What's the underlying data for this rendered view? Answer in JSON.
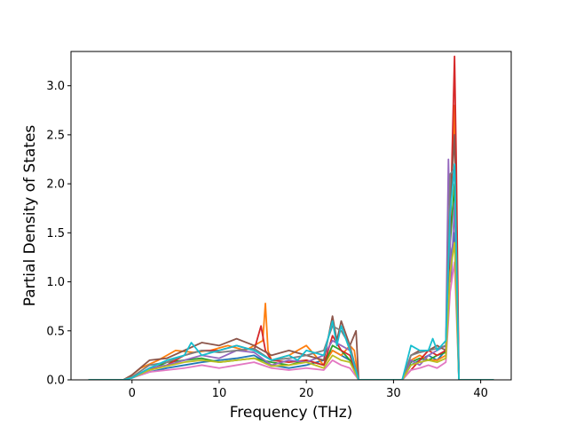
{
  "chart_data": {
    "type": "line",
    "title": "",
    "xlabel": "Frequency (THz)",
    "ylabel": "Partial Density of States",
    "xlim": [
      -7,
      43.5
    ],
    "ylim": [
      0,
      3.35
    ],
    "xticks": [
      0,
      10,
      20,
      30,
      40
    ],
    "xtick_labels": [
      "0",
      "10",
      "20",
      "30",
      "40"
    ],
    "yticks": [
      0.0,
      0.5,
      1.0,
      1.5,
      2.0,
      2.5,
      3.0
    ],
    "ytick_labels": [
      "0.0",
      "0.5",
      "1.0",
      "1.5",
      "2.0",
      "2.5",
      "3.0"
    ],
    "grid": false,
    "legend": "none",
    "series": [
      {
        "color": "#1f77b4",
        "x": [
          -5,
          -1,
          0,
          2,
          4,
          6,
          8,
          10,
          12,
          14,
          16,
          18,
          20,
          22,
          23,
          24,
          25,
          26,
          27,
          31,
          32,
          33,
          34,
          35,
          36,
          36.5,
          37,
          37.5,
          38,
          41.5
        ],
        "y": [
          0,
          0,
          0.02,
          0.08,
          0.12,
          0.15,
          0.18,
          0.2,
          0.22,
          0.25,
          0.15,
          0.12,
          0.15,
          0.2,
          0.3,
          0.25,
          0.2,
          0,
          0,
          0,
          0.15,
          0.2,
          0.25,
          0.2,
          0.3,
          1.2,
          1.5,
          0,
          0,
          0
        ]
      },
      {
        "color": "#ff7f0e",
        "x": [
          -5,
          -1,
          0,
          1,
          3,
          5,
          7,
          9,
          11,
          13,
          15,
          15.3,
          15.6,
          16,
          18,
          20,
          22,
          23,
          24,
          25,
          25.5,
          26,
          27,
          31,
          32,
          33,
          34,
          35,
          36,
          36.5,
          37,
          37.5,
          38,
          41.5
        ],
        "y": [
          0,
          0,
          0.05,
          0.12,
          0.2,
          0.3,
          0.28,
          0.3,
          0.35,
          0.3,
          0.4,
          0.78,
          0.3,
          0.2,
          0.25,
          0.35,
          0.15,
          0.3,
          0.25,
          0.35,
          0.3,
          0,
          0,
          0,
          0.2,
          0.25,
          0.2,
          0.2,
          0.25,
          1.6,
          2.8,
          0,
          0,
          0
        ]
      },
      {
        "color": "#2ca02c",
        "x": [
          -5,
          -1,
          0,
          2,
          4,
          6,
          8,
          10,
          12,
          14,
          16,
          18,
          20,
          22,
          23,
          24,
          25,
          26,
          27,
          31,
          32,
          33,
          34,
          35,
          36,
          36.5,
          37,
          37.5,
          38,
          41.5
        ],
        "y": [
          0,
          0,
          0.03,
          0.1,
          0.18,
          0.2,
          0.22,
          0.18,
          0.2,
          0.22,
          0.18,
          0.15,
          0.2,
          0.15,
          0.35,
          0.3,
          0.2,
          0,
          0,
          0,
          0.18,
          0.22,
          0.2,
          0.25,
          0.28,
          1.4,
          2.0,
          0,
          0,
          0
        ]
      },
      {
        "color": "#d62728",
        "x": [
          -5,
          -1,
          0,
          2,
          4,
          6,
          8,
          10,
          12,
          14,
          14.8,
          15.3,
          16,
          18,
          20,
          22,
          23,
          24,
          25,
          26,
          27,
          31,
          32,
          33,
          34,
          35,
          36,
          36.5,
          37,
          37.2,
          37.5,
          38,
          41.5
        ],
        "y": [
          0,
          0,
          0.03,
          0.1,
          0.15,
          0.25,
          0.3,
          0.3,
          0.35,
          0.3,
          0.55,
          0.3,
          0.2,
          0.18,
          0.2,
          0.15,
          0.45,
          0.3,
          0.25,
          0,
          0,
          0,
          0.1,
          0.2,
          0.3,
          0.25,
          0.3,
          1.5,
          3.3,
          2.2,
          0,
          0,
          0
        ]
      },
      {
        "color": "#9467bd",
        "x": [
          -5,
          -1,
          0,
          2,
          4,
          6,
          8,
          10,
          12,
          14,
          16,
          18,
          20,
          22,
          23,
          24,
          25,
          26,
          27,
          31,
          32,
          33,
          34,
          35,
          36,
          36.3,
          36.6,
          37,
          37.5,
          38,
          41.5
        ],
        "y": [
          0,
          0,
          0.02,
          0.12,
          0.15,
          0.2,
          0.25,
          0.22,
          0.3,
          0.28,
          0.15,
          0.2,
          0.18,
          0.25,
          0.4,
          0.35,
          0.3,
          0,
          0,
          0,
          0.2,
          0.15,
          0.25,
          0.3,
          0.35,
          2.25,
          1.0,
          1.8,
          0,
          0,
          0
        ]
      },
      {
        "color": "#8c564b",
        "x": [
          -5,
          -1,
          0,
          2,
          4,
          6,
          8,
          10,
          12,
          14,
          16,
          18,
          20,
          22,
          23,
          23.5,
          24,
          25,
          25.7,
          26,
          27,
          31,
          32,
          33,
          34,
          35,
          36,
          36.5,
          37,
          37.5,
          38,
          41.5
        ],
        "y": [
          0,
          0,
          0.05,
          0.2,
          0.22,
          0.3,
          0.38,
          0.35,
          0.42,
          0.35,
          0.25,
          0.3,
          0.25,
          0.2,
          0.65,
          0.4,
          0.6,
          0.35,
          0.5,
          0,
          0,
          0,
          0.25,
          0.3,
          0.3,
          0.35,
          0.3,
          1.8,
          2.5,
          0,
          0,
          0
        ]
      },
      {
        "color": "#e377c2",
        "x": [
          -5,
          -1,
          0,
          2,
          4,
          6,
          8,
          10,
          12,
          14,
          16,
          18,
          20,
          22,
          23,
          24,
          25,
          26,
          27,
          31,
          32,
          33,
          34,
          35,
          36,
          36.5,
          37,
          37.5,
          38,
          41.5
        ],
        "y": [
          0,
          0,
          0.02,
          0.08,
          0.1,
          0.12,
          0.15,
          0.12,
          0.15,
          0.18,
          0.12,
          0.1,
          0.12,
          0.1,
          0.2,
          0.15,
          0.12,
          0,
          0,
          0,
          0.1,
          0.12,
          0.15,
          0.12,
          0.18,
          0.9,
          1.2,
          0,
          0,
          0
        ]
      },
      {
        "color": "#7f7f7f",
        "x": [
          -5,
          -1,
          0,
          2,
          4,
          6,
          8,
          10,
          12,
          14,
          16,
          18,
          20,
          22,
          23,
          24,
          25,
          26,
          27,
          31,
          32,
          33,
          34,
          35,
          36,
          36.5,
          37,
          37.5,
          38,
          41.5
        ],
        "y": [
          0,
          0,
          0.03,
          0.15,
          0.18,
          0.25,
          0.3,
          0.28,
          0.3,
          0.32,
          0.2,
          0.22,
          0.25,
          0.3,
          0.55,
          0.5,
          0.35,
          0,
          0,
          0,
          0.25,
          0.28,
          0.3,
          0.32,
          0.35,
          2.1,
          2.15,
          0,
          0,
          0
        ]
      },
      {
        "color": "#bcbd22",
        "x": [
          -5,
          -1,
          0,
          2,
          4,
          6,
          8,
          10,
          12,
          14,
          16,
          18,
          20,
          22,
          23,
          24,
          25,
          26,
          27,
          31,
          32,
          33,
          34,
          35,
          36,
          36.5,
          37,
          37.5,
          38,
          41.5
        ],
        "y": [
          0,
          0,
          0.02,
          0.1,
          0.14,
          0.18,
          0.2,
          0.18,
          0.2,
          0.22,
          0.14,
          0.15,
          0.18,
          0.12,
          0.25,
          0.2,
          0.18,
          0,
          0,
          0,
          0.15,
          0.18,
          0.2,
          0.18,
          0.22,
          1.1,
          1.4,
          0,
          0,
          0
        ]
      },
      {
        "color": "#17becf",
        "x": [
          -5,
          -1,
          0,
          2,
          4,
          6,
          6.8,
          8,
          10,
          12,
          14,
          16,
          18,
          19,
          20,
          22,
          23,
          23.5,
          24,
          25,
          26,
          27,
          31,
          32,
          33,
          34,
          34.5,
          35,
          36,
          36.5,
          37,
          37.5,
          38,
          41.5
        ],
        "y": [
          0,
          0,
          0.02,
          0.12,
          0.2,
          0.25,
          0.38,
          0.25,
          0.3,
          0.35,
          0.3,
          0.2,
          0.25,
          0.2,
          0.3,
          0.25,
          0.6,
          0.35,
          0.55,
          0.3,
          0,
          0,
          0,
          0.35,
          0.3,
          0.3,
          0.42,
          0.3,
          0.4,
          1.7,
          2.2,
          0,
          0,
          0
        ]
      }
    ]
  }
}
